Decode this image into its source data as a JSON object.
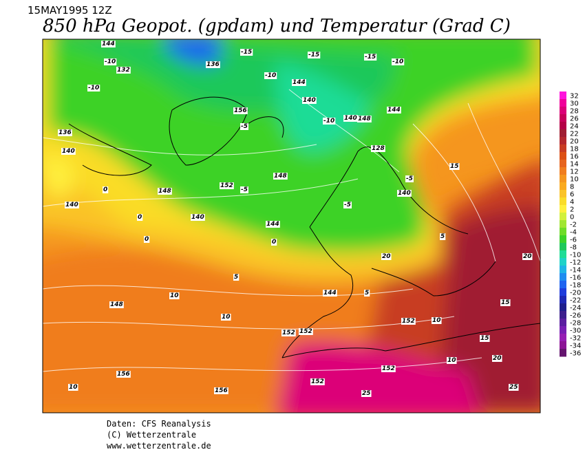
{
  "header": {
    "date": "15MAY1995 12Z",
    "title": "850 hPa Geopot. (gpdam) und  Temperatur (Grad C)"
  },
  "colorbar": {
    "ticks": [
      32,
      30,
      28,
      26,
      24,
      22,
      20,
      18,
      16,
      14,
      12,
      10,
      8,
      6,
      4,
      2,
      0,
      -2,
      -4,
      -6,
      -8,
      -10,
      -12,
      -14,
      -16,
      -18,
      -20,
      -22,
      -24,
      -26,
      -28,
      -30,
      -32,
      -34,
      -36
    ],
    "colors": [
      "#ff14dc",
      "#f0009a",
      "#dc0078",
      "#c8005a",
      "#b40046",
      "#a01e32",
      "#b4282d",
      "#c83c23",
      "#dc5014",
      "#e6641e",
      "#f07d1e",
      "#f5961e",
      "#faaa1e",
      "#fac328",
      "#fadc28",
      "#fff03c",
      "#d2f03c",
      "#a0e632",
      "#6edc28",
      "#3cd228",
      "#1ec85a",
      "#1edc96",
      "#1ed2c8",
      "#1eb4e6",
      "#1e8cf0",
      "#1e64f0",
      "#1e3cdc",
      "#1e28b4",
      "#1e1e8c",
      "#3c1e8c",
      "#5a1ea0",
      "#781eb4",
      "#961eb4",
      "#8c1496",
      "#64146e"
    ]
  },
  "map_labels": [
    "-15",
    "-15",
    "-10",
    "132",
    "-10",
    "136",
    "144",
    "140",
    "-10",
    "-15",
    "-10",
    "144",
    "140",
    "-10",
    "-5",
    "156",
    "148",
    "-5",
    "152",
    "-5",
    "144",
    "140",
    "128",
    "-5",
    "148",
    "152",
    "140",
    "144",
    "148",
    "136",
    "140",
    "140",
    "148",
    "152",
    "152",
    "156",
    "156",
    "152",
    "144",
    "152",
    "20",
    "20",
    "15",
    "15",
    "10",
    "10",
    "10",
    "5",
    "5",
    "25",
    "25",
    "20",
    "15",
    "10",
    "10",
    "5",
    "0",
    "0",
    "0",
    "0"
  ],
  "footer": {
    "source": "Daten: CFS Reanalysis",
    "copyright": "(C) Wetterzentrale",
    "url": "www.wetterzentrale.de"
  }
}
